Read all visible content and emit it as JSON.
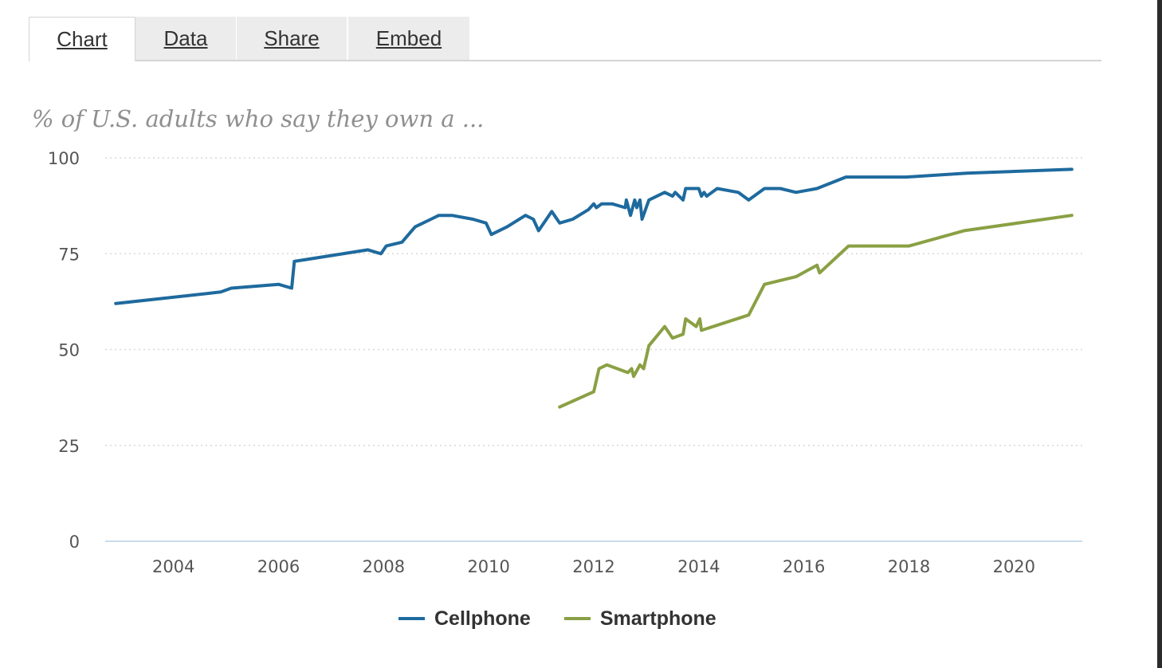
{
  "tabs": [
    {
      "label": "Chart",
      "active": true
    },
    {
      "label": "Data",
      "active": false
    },
    {
      "label": "Share",
      "active": false
    },
    {
      "label": "Embed",
      "active": false
    }
  ],
  "chart_data": {
    "type": "line",
    "title": "",
    "subtitle": "% of U.S. adults who say they own a ...",
    "xlabel": "",
    "ylabel": "",
    "xlim": [
      2002.7,
      2021.3
    ],
    "ylim": [
      0,
      100
    ],
    "yticks": [
      0,
      25,
      50,
      75,
      100
    ],
    "xticks": [
      2004,
      2006,
      2008,
      2010,
      2012,
      2014,
      2016,
      2018,
      2020
    ],
    "grid": true,
    "legend_position": "bottom",
    "series": [
      {
        "name": "Cellphone",
        "color": "#1e6a9e",
        "points": [
          [
            2002.9,
            62
          ],
          [
            2004.9,
            65
          ],
          [
            2005.1,
            66
          ],
          [
            2006.0,
            67
          ],
          [
            2006.25,
            66
          ],
          [
            2006.3,
            73
          ],
          [
            2007.7,
            76
          ],
          [
            2007.95,
            75
          ],
          [
            2008.05,
            77
          ],
          [
            2008.35,
            78
          ],
          [
            2008.6,
            82
          ],
          [
            2008.9,
            84
          ],
          [
            2009.05,
            85
          ],
          [
            2009.3,
            85
          ],
          [
            2009.7,
            84
          ],
          [
            2009.95,
            83
          ],
          [
            2010.05,
            80
          ],
          [
            2010.35,
            82
          ],
          [
            2010.7,
            85
          ],
          [
            2010.85,
            84
          ],
          [
            2010.95,
            81
          ],
          [
            2011.2,
            86
          ],
          [
            2011.35,
            83
          ],
          [
            2011.6,
            84
          ],
          [
            2011.9,
            86.5
          ],
          [
            2012.0,
            88
          ],
          [
            2012.05,
            87
          ],
          [
            2012.15,
            88
          ],
          [
            2012.35,
            88
          ],
          [
            2012.6,
            87
          ],
          [
            2012.62,
            89
          ],
          [
            2012.7,
            85
          ],
          [
            2012.78,
            89
          ],
          [
            2012.82,
            87
          ],
          [
            2012.88,
            89
          ],
          [
            2012.92,
            84
          ],
          [
            2013.05,
            89
          ],
          [
            2013.35,
            91
          ],
          [
            2013.5,
            90
          ],
          [
            2013.55,
            91
          ],
          [
            2013.7,
            89
          ],
          [
            2013.75,
            92
          ],
          [
            2014.0,
            92
          ],
          [
            2014.05,
            90
          ],
          [
            2014.1,
            91
          ],
          [
            2014.15,
            90
          ],
          [
            2014.35,
            92
          ],
          [
            2014.75,
            91
          ],
          [
            2014.95,
            89
          ],
          [
            2015.25,
            92
          ],
          [
            2015.55,
            92
          ],
          [
            2015.85,
            91
          ],
          [
            2016.25,
            92
          ],
          [
            2016.8,
            95
          ],
          [
            2017.95,
            95
          ],
          [
            2019.1,
            96
          ],
          [
            2021.1,
            97
          ]
        ]
      },
      {
        "name": "Smartphone",
        "color": "#8aa044",
        "points": [
          [
            2011.35,
            35
          ],
          [
            2012.0,
            39
          ],
          [
            2012.1,
            45
          ],
          [
            2012.25,
            46
          ],
          [
            2012.65,
            44
          ],
          [
            2012.72,
            45
          ],
          [
            2012.76,
            43
          ],
          [
            2012.88,
            46
          ],
          [
            2012.95,
            45
          ],
          [
            2013.05,
            51
          ],
          [
            2013.35,
            56
          ],
          [
            2013.5,
            53
          ],
          [
            2013.7,
            54
          ],
          [
            2013.75,
            58
          ],
          [
            2013.95,
            56
          ],
          [
            2014.02,
            58
          ],
          [
            2014.05,
            55
          ],
          [
            2014.95,
            59
          ],
          [
            2015.25,
            67
          ],
          [
            2015.85,
            69
          ],
          [
            2016.25,
            72
          ],
          [
            2016.3,
            70
          ],
          [
            2016.85,
            77
          ],
          [
            2018.0,
            77
          ],
          [
            2019.05,
            81
          ],
          [
            2021.1,
            85
          ]
        ]
      }
    ]
  }
}
